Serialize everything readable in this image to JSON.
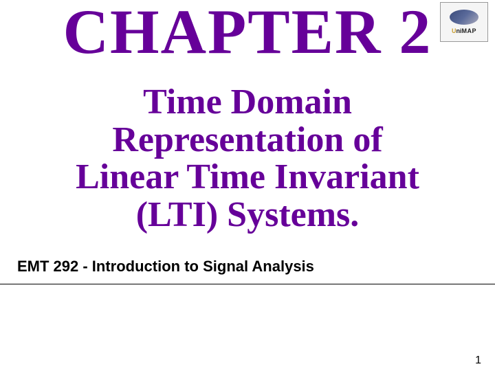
{
  "chapter": {
    "title": "CHAPTER 2",
    "subtitle_line1": "Time Domain",
    "subtitle_line2": "Representation of",
    "subtitle_line3": "Linear Time Invariant",
    "subtitle_line4": "(LTI) Systems."
  },
  "course": {
    "code_label": "EMT 292 - Introduction to Signal Analysis"
  },
  "page": {
    "number": "1"
  },
  "logo": {
    "text_prefix": "U",
    "text_suffix": "MAP"
  },
  "styles": {
    "title_color": "#660099",
    "subtitle_color": "#660099",
    "course_color": "#000000",
    "background_color": "#ffffff",
    "title_fontsize": 92,
    "subtitle_fontsize": 52,
    "course_fontsize": 22
  }
}
